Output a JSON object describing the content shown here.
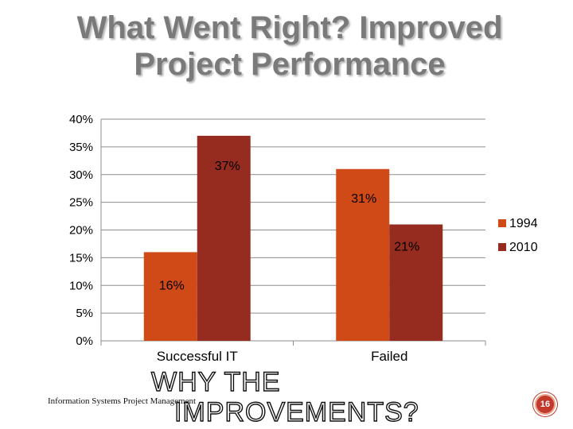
{
  "slide": {
    "title_line1": "What Went Right? Improved",
    "title_line2": "Project Performance",
    "subheading_line1": "WHY THE",
    "subheading_line2": "IMPROVEMENTS?",
    "footer": "Information Systems Project Management",
    "page_number": "16"
  },
  "chart_data": {
    "type": "bar",
    "categories": [
      "Successful IT",
      "Failed"
    ],
    "series": [
      {
        "name": "1994",
        "values": [
          16,
          31
        ],
        "labels": [
          "16%",
          "31%"
        ],
        "color": "#d04a17"
      },
      {
        "name": "2010",
        "values": [
          37,
          21
        ],
        "labels": [
          "37%",
          "21%"
        ],
        "color": "#962c20"
      }
    ],
    "y_ticks": [
      "0%",
      "5%",
      "10%",
      "15%",
      "20%",
      "25%",
      "30%",
      "35%",
      "40%"
    ],
    "ylim": [
      0,
      40
    ],
    "grid": true,
    "legend_position": "right",
    "value_unit": "%"
  }
}
